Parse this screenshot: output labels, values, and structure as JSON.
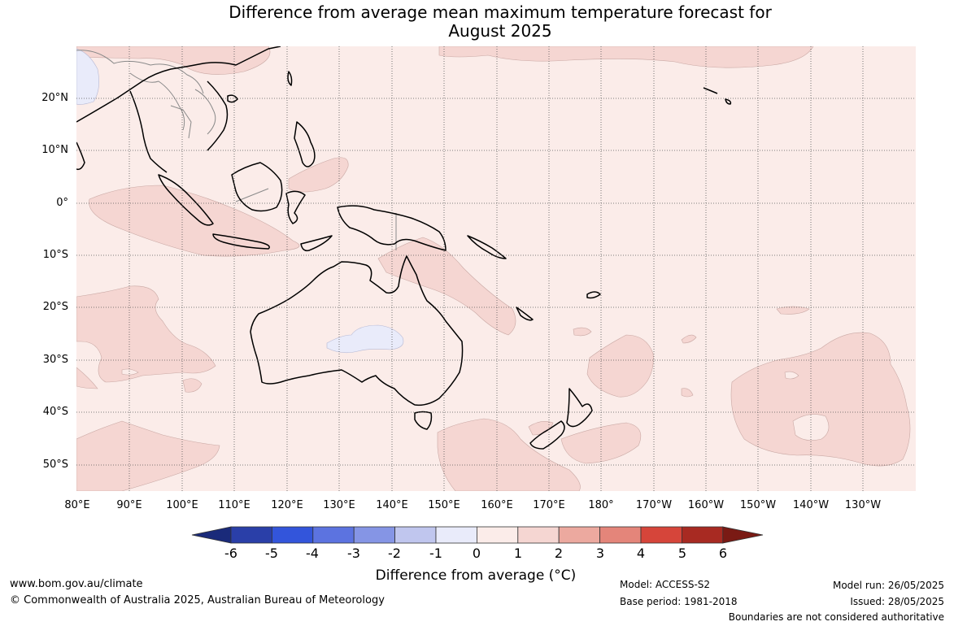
{
  "title_line1": "Difference from average mean maximum temperature forecast for",
  "title_line2": "August 2025",
  "lat_labels": [
    "20°N",
    "10°N",
    "0°",
    "10°S",
    "20°S",
    "30°S",
    "40°S",
    "50°S"
  ],
  "lon_labels": [
    "80°E",
    "90°E",
    "100°E",
    "110°E",
    "120°E",
    "130°E",
    "140°E",
    "150°E",
    "160°E",
    "170°E",
    "180°",
    "170°W",
    "160°W",
    "150°W",
    "140°W",
    "130°W"
  ],
  "colorbar": {
    "ticks": [
      "-6",
      "-5",
      "-4",
      "-3",
      "-2",
      "-1",
      "0",
      "1",
      "2",
      "3",
      "4",
      "5",
      "6"
    ],
    "label": "Difference from average (°C)",
    "colors": [
      "#1a2a7a",
      "#2a3fa8",
      "#3355db",
      "#5c73e0",
      "#8595e5",
      "#c0c6ee",
      "#e9ebfa",
      "#fbece9",
      "#f5d6d2",
      "#eca99f",
      "#e4857a",
      "#d6453a",
      "#a82a22",
      "#7a1a14"
    ]
  },
  "footer": {
    "url": "www.bom.gov.au/climate",
    "copyright": "© Commonwealth of Australia 2025, Australian Bureau of Meteorology",
    "model": "Model: ACCESS-S2",
    "base_period": "Base period: 1981-2018",
    "model_run": "Model run: 26/05/2025",
    "issued": "Issued: 28/05/2025",
    "boundaries_note": "Boundaries are not considered authoritative"
  }
}
